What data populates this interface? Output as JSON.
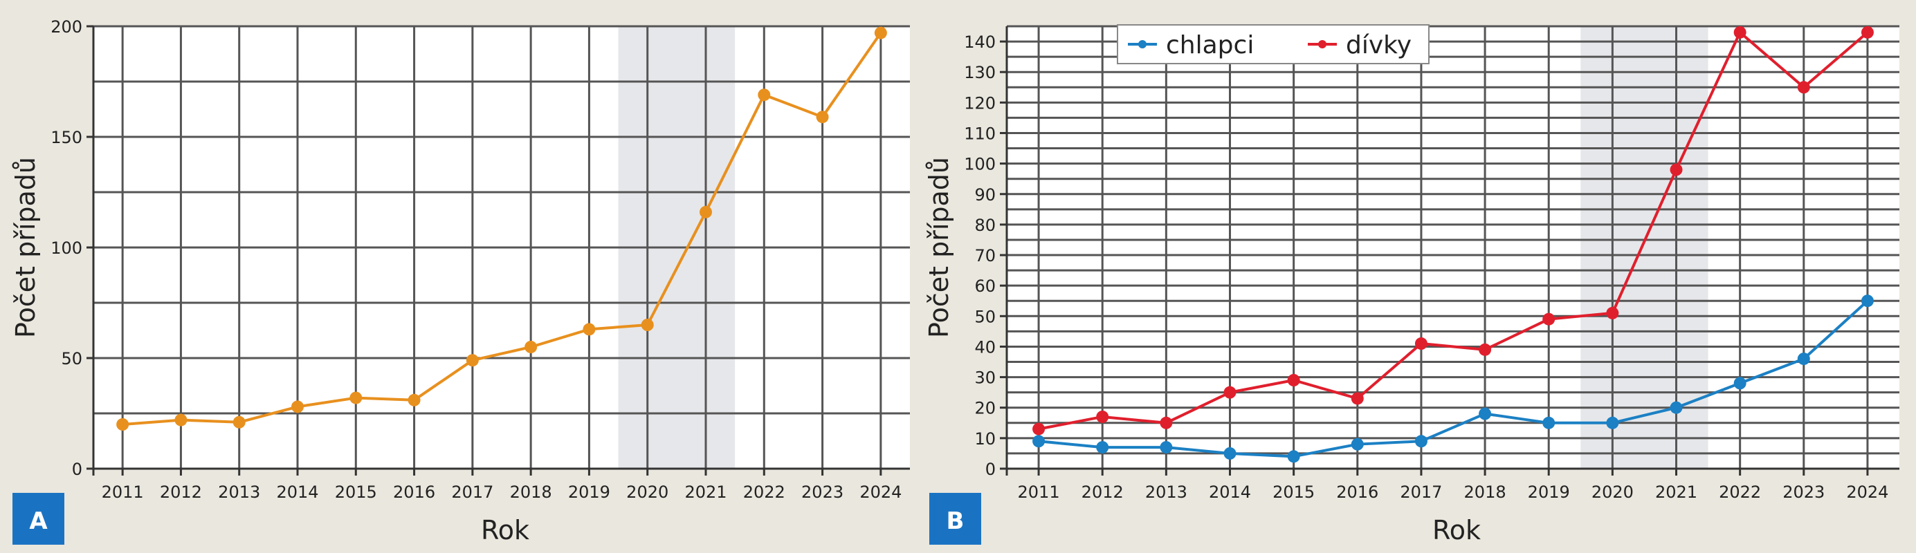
{
  "panels": {
    "a": {
      "badge": "A"
    },
    "b": {
      "badge": "B"
    }
  },
  "colors": {
    "page_background": "#eae7de",
    "plot_background": "#ffffff",
    "grid": "#555555",
    "highlight_band": "#e6e7ea",
    "series_total": "#e8901e",
    "series_boys": "#1b80c4",
    "series_girls": "#e01f2d",
    "badge": "#1a73c2"
  },
  "chart_data": [
    {
      "type": "line",
      "panel": "A",
      "xlabel": "Rok",
      "ylabel": "Počet případů",
      "ylim": [
        0,
        200
      ],
      "yticks": [
        0,
        50,
        100,
        150,
        200
      ],
      "grid": true,
      "highlight_range": [
        2019.5,
        2021.5
      ],
      "x": [
        2011,
        2012,
        2013,
        2014,
        2015,
        2016,
        2017,
        2018,
        2019,
        2020,
        2021,
        2022,
        2023,
        2024
      ],
      "series": [
        {
          "values": [
            20,
            22,
            21,
            28,
            32,
            31,
            49,
            55,
            63,
            65,
            116,
            169,
            159,
            197
          ]
        }
      ]
    },
    {
      "type": "line",
      "panel": "B",
      "xlabel": "Rok",
      "ylabel": "Počet případů",
      "ylim": [
        0,
        145
      ],
      "yticks": [
        0,
        10,
        20,
        30,
        40,
        50,
        60,
        70,
        80,
        90,
        100,
        110,
        120,
        130,
        140
      ],
      "grid": true,
      "legend": "top-left",
      "highlight_range": [
        2019.5,
        2021.5
      ],
      "x": [
        2011,
        2012,
        2013,
        2014,
        2015,
        2016,
        2017,
        2018,
        2019,
        2020,
        2021,
        2022,
        2023,
        2024
      ],
      "series": [
        {
          "name": "chlapci",
          "values": [
            9,
            7,
            7,
            5,
            4,
            8,
            9,
            18,
            15,
            15,
            20,
            28,
            36,
            55
          ]
        },
        {
          "name": "dívky",
          "values": [
            13,
            17,
            15,
            25,
            29,
            23,
            41,
            39,
            49,
            51,
            98,
            143,
            125,
            143
          ]
        }
      ]
    }
  ]
}
